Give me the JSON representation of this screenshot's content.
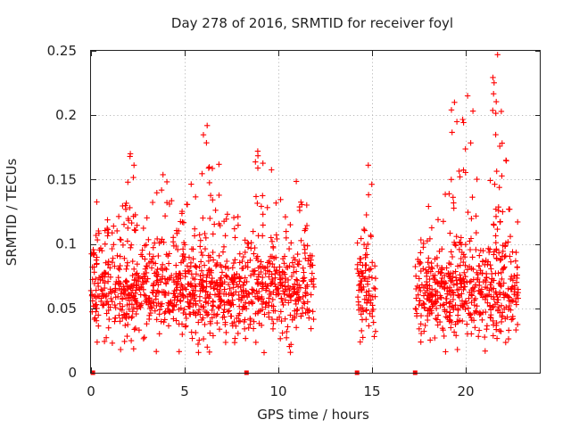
{
  "chart_data": {
    "type": "scatter",
    "title": "Day 278 of 2016, SRMTID for receiver foyl",
    "xlabel": "GPS time / hours",
    "ylabel": "SRMTID / TECUs",
    "xlim": [
      0,
      24
    ],
    "ylim": [
      0,
      0.25
    ],
    "x_ticks": [
      0,
      5,
      10,
      15,
      20
    ],
    "x_tick_labels": [
      "0",
      "5",
      "10",
      "15",
      "20"
    ],
    "y_ticks": [
      0,
      0.05,
      0.1,
      0.15,
      0.2,
      0.25
    ],
    "y_tick_labels": [
      "0",
      "0.05",
      "0.1",
      "0.15",
      "0.2",
      "0.25"
    ],
    "grid": true,
    "marker": "plus",
    "series_color": "#ff0000",
    "data_ranges_hours": [
      [
        0.0,
        11.9
      ],
      [
        14.2,
        15.2
      ],
      [
        17.3,
        22.8
      ]
    ],
    "zero_value_markers_x": [
      0.1,
      8.3,
      14.2,
      17.3
    ],
    "baseline_mean": 0.063,
    "notable_peaks": [
      {
        "x": 2.1,
        "y": 0.17
      },
      {
        "x": 6.2,
        "y": 0.192
      },
      {
        "x": 8.9,
        "y": 0.172
      },
      {
        "x": 19.4,
        "y": 0.21
      },
      {
        "x": 20.1,
        "y": 0.215
      },
      {
        "x": 21.7,
        "y": 0.247
      },
      {
        "x": 21.9,
        "y": 0.203
      }
    ]
  }
}
